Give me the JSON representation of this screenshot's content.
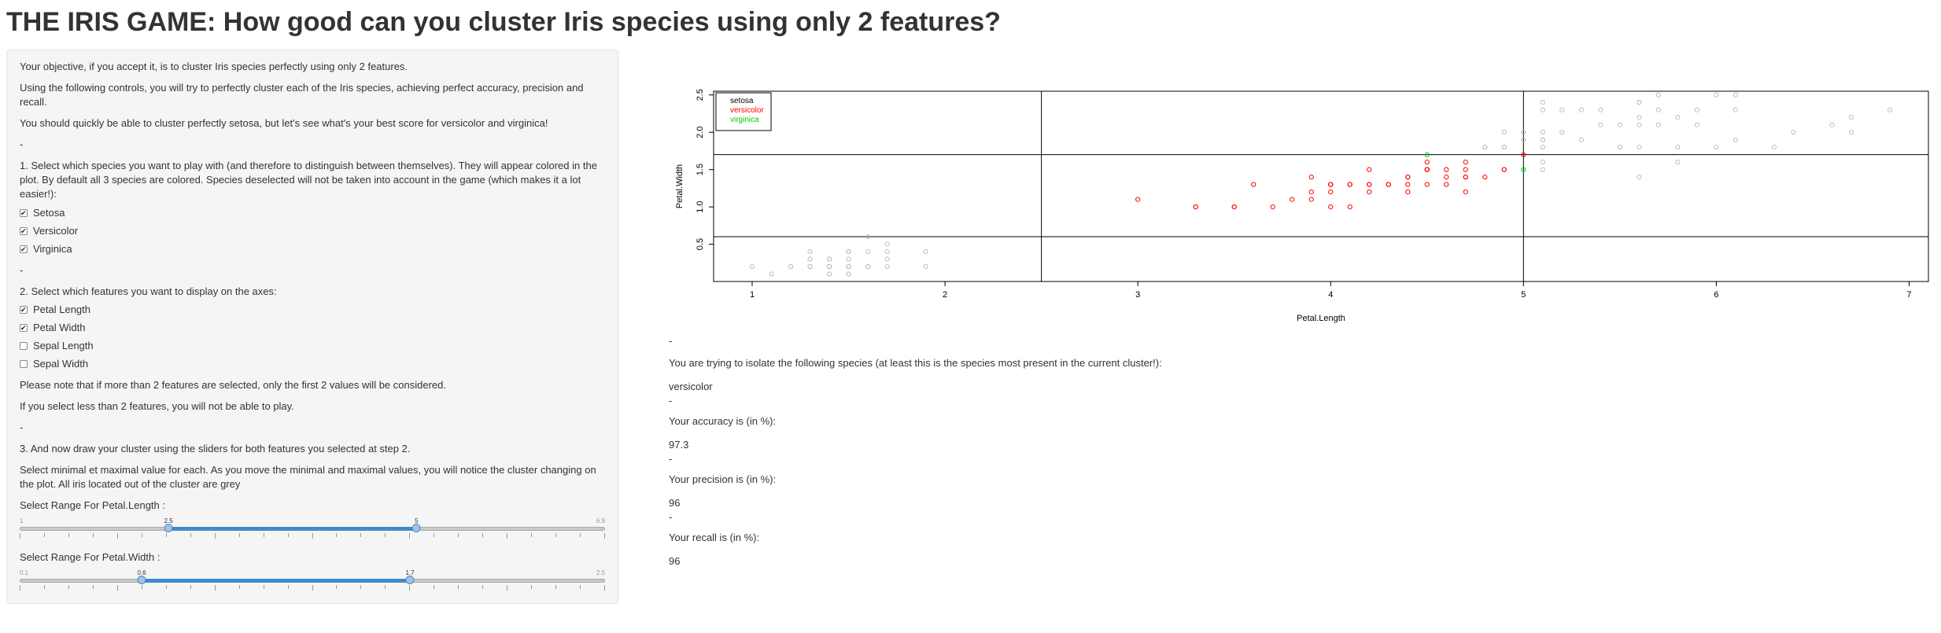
{
  "title": "THE IRIS GAME: How good can you cluster Iris species using only 2 features?",
  "sidebar": {
    "intro1": "Your objective, if you accept it, is to cluster Iris species perfectly using only 2 features.",
    "intro2": "Using the following controls, you will try to perfectly cluster each of the Iris species, achieving perfect accuracy, precision and recall.",
    "intro3": "You should quickly be able to cluster perfectly setosa, but let's see what's your best score for versicolor and virginica!",
    "dash": "-",
    "step1": "1. Select which species you want to play with (and therefore to distinguish between themselves). They will appear colored in the plot. By default all 3 species are colored. Species deselected will not be taken into account in the game (which makes it a lot easier!):",
    "species": [
      {
        "label": "Setosa",
        "checked": true
      },
      {
        "label": "Versicolor",
        "checked": true
      },
      {
        "label": "Virginica",
        "checked": true
      }
    ],
    "step2": "2. Select which features you want to display on the axes:",
    "features": [
      {
        "label": "Petal Length",
        "checked": true
      },
      {
        "label": "Petal Width",
        "checked": true
      },
      {
        "label": "Sepal Length",
        "checked": false
      },
      {
        "label": "Sepal Width",
        "checked": false
      }
    ],
    "note1": "Please note that if more than 2 features are selected, only the first 2 values will be considered.",
    "note2": "If you select less than 2 features, you will not be able to play.",
    "step3": "3. And now draw your cluster using the sliders for both features you selected at step 2.",
    "step3_detail": "Select minimal et maximal value for each. As you move the minimal and maximal values, you will notice the cluster changing on the plot. All iris located out of the cluster are grey",
    "slider1": {
      "label": "Select Range For Petal.Length :",
      "min": 1,
      "max": 6.9,
      "from": 2.5,
      "to": 5,
      "min_label": "1",
      "max_label": "6.9",
      "from_label": "2.5",
      "to_label": "5"
    },
    "slider2": {
      "label": "Select Range For Petal.Width :",
      "min": 0.1,
      "max": 2.5,
      "from": 0.6,
      "to": 1.7,
      "min_label": "0.1",
      "max_label": "2.5",
      "from_label": "0.6",
      "to_label": "1.7"
    }
  },
  "results": {
    "dash": "-",
    "species_label": "You are trying to isolate the following species (at least this is the species most present in the current cluster!):",
    "species_value": "versicolor",
    "accuracy_label": "Your accuracy is (in %):",
    "accuracy_value": "97.3",
    "precision_label": "Your precision is (in %):",
    "precision_value": "96",
    "recall_label": "Your recall is (in %):",
    "recall_value": "96"
  },
  "chart_data": {
    "type": "scatter",
    "xlabel": "Petal.Length",
    "ylabel": "Petal.Width",
    "xlim": [
      0.8,
      7.1
    ],
    "ylim": [
      0.0,
      2.55
    ],
    "xticks": [
      "1",
      "2",
      "3",
      "4",
      "5",
      "6",
      "7"
    ],
    "yticks": [
      "0.5",
      "1.0",
      "1.5",
      "2.0",
      "2.5"
    ],
    "legend": {
      "position": "top-left",
      "entries": [
        {
          "name": "setosa",
          "color": "#000000"
        },
        {
          "name": "versicolor",
          "color": "#ff0000"
        },
        {
          "name": "virginica",
          "color": "#00cd00"
        }
      ]
    },
    "cluster_lines": {
      "x": [
        2.5,
        5
      ],
      "y": [
        0.6,
        1.7
      ]
    },
    "colors": {
      "in_cluster_versicolor": "#ff0000",
      "in_cluster_virginica": "#00cd00",
      "out_of_cluster": "#bebebe"
    },
    "series": [
      {
        "name": "setosa",
        "points": [
          [
            1.4,
            0.2
          ],
          [
            1.4,
            0.2
          ],
          [
            1.3,
            0.2
          ],
          [
            1.5,
            0.2
          ],
          [
            1.4,
            0.2
          ],
          [
            1.7,
            0.4
          ],
          [
            1.4,
            0.3
          ],
          [
            1.5,
            0.2
          ],
          [
            1.4,
            0.2
          ],
          [
            1.5,
            0.1
          ],
          [
            1.5,
            0.2
          ],
          [
            1.6,
            0.2
          ],
          [
            1.4,
            0.1
          ],
          [
            1.1,
            0.1
          ],
          [
            1.2,
            0.2
          ],
          [
            1.5,
            0.4
          ],
          [
            1.3,
            0.4
          ],
          [
            1.4,
            0.3
          ],
          [
            1.7,
            0.3
          ],
          [
            1.5,
            0.3
          ],
          [
            1.7,
            0.2
          ],
          [
            1.5,
            0.4
          ],
          [
            1.0,
            0.2
          ],
          [
            1.7,
            0.5
          ],
          [
            1.9,
            0.2
          ],
          [
            1.6,
            0.2
          ],
          [
            1.6,
            0.4
          ],
          [
            1.5,
            0.2
          ],
          [
            1.4,
            0.2
          ],
          [
            1.6,
            0.2
          ],
          [
            1.6,
            0.2
          ],
          [
            1.5,
            0.4
          ],
          [
            1.5,
            0.1
          ],
          [
            1.4,
            0.2
          ],
          [
            1.5,
            0.2
          ],
          [
            1.2,
            0.2
          ],
          [
            1.3,
            0.2
          ],
          [
            1.4,
            0.1
          ],
          [
            1.3,
            0.2
          ],
          [
            1.5,
            0.2
          ],
          [
            1.3,
            0.3
          ],
          [
            1.3,
            0.3
          ],
          [
            1.3,
            0.2
          ],
          [
            1.6,
            0.6
          ],
          [
            1.9,
            0.4
          ],
          [
            1.4,
            0.3
          ],
          [
            1.6,
            0.2
          ],
          [
            1.4,
            0.2
          ],
          [
            1.5,
            0.2
          ],
          [
            1.4,
            0.2
          ]
        ]
      },
      {
        "name": "versicolor",
        "points": [
          [
            4.7,
            1.4
          ],
          [
            4.5,
            1.5
          ],
          [
            4.9,
            1.5
          ],
          [
            4.0,
            1.3
          ],
          [
            4.6,
            1.5
          ],
          [
            4.5,
            1.3
          ],
          [
            4.7,
            1.6
          ],
          [
            3.3,
            1.0
          ],
          [
            4.6,
            1.3
          ],
          [
            3.9,
            1.4
          ],
          [
            3.5,
            1.0
          ],
          [
            4.2,
            1.5
          ],
          [
            4.0,
            1.0
          ],
          [
            4.7,
            1.4
          ],
          [
            3.6,
            1.3
          ],
          [
            4.4,
            1.4
          ],
          [
            4.5,
            1.5
          ],
          [
            4.1,
            1.0
          ],
          [
            4.5,
            1.5
          ],
          [
            3.9,
            1.1
          ],
          [
            4.8,
            1.8
          ],
          [
            4.0,
            1.3
          ],
          [
            4.9,
            1.5
          ],
          [
            4.7,
            1.2
          ],
          [
            4.3,
            1.3
          ],
          [
            4.4,
            1.4
          ],
          [
            4.8,
            1.4
          ],
          [
            5.0,
            1.7
          ],
          [
            4.5,
            1.5
          ],
          [
            3.5,
            1.0
          ],
          [
            3.8,
            1.1
          ],
          [
            3.7,
            1.0
          ],
          [
            3.9,
            1.2
          ],
          [
            5.1,
            1.6
          ],
          [
            4.5,
            1.5
          ],
          [
            4.5,
            1.6
          ],
          [
            4.7,
            1.5
          ],
          [
            4.4,
            1.3
          ],
          [
            4.1,
            1.3
          ],
          [
            4.0,
            1.3
          ],
          [
            4.4,
            1.2
          ],
          [
            4.6,
            1.4
          ],
          [
            4.0,
            1.2
          ],
          [
            3.3,
            1.0
          ],
          [
            4.2,
            1.3
          ],
          [
            4.2,
            1.2
          ],
          [
            4.2,
            1.3
          ],
          [
            4.3,
            1.3
          ],
          [
            3.0,
            1.1
          ],
          [
            4.1,
            1.3
          ]
        ]
      },
      {
        "name": "virginica",
        "points": [
          [
            6.0,
            2.5
          ],
          [
            5.1,
            1.9
          ],
          [
            5.9,
            2.1
          ],
          [
            5.6,
            1.8
          ],
          [
            5.8,
            2.2
          ],
          [
            6.6,
            2.1
          ],
          [
            4.5,
            1.7
          ],
          [
            6.3,
            1.8
          ],
          [
            5.8,
            1.8
          ],
          [
            6.1,
            2.5
          ],
          [
            5.1,
            2.0
          ],
          [
            5.3,
            1.9
          ],
          [
            5.5,
            2.1
          ],
          [
            5.0,
            2.0
          ],
          [
            5.1,
            2.4
          ],
          [
            5.3,
            2.3
          ],
          [
            5.5,
            1.8
          ],
          [
            6.7,
            2.2
          ],
          [
            6.9,
            2.3
          ],
          [
            5.0,
            1.5
          ],
          [
            5.7,
            2.3
          ],
          [
            4.9,
            2.0
          ],
          [
            6.7,
            2.0
          ],
          [
            4.9,
            1.8
          ],
          [
            5.7,
            2.1
          ],
          [
            6.0,
            1.8
          ],
          [
            4.8,
            1.8
          ],
          [
            4.9,
            1.8
          ],
          [
            5.6,
            2.1
          ],
          [
            5.8,
            1.6
          ],
          [
            6.1,
            1.9
          ],
          [
            6.4,
            2.0
          ],
          [
            5.6,
            2.2
          ],
          [
            5.1,
            1.5
          ],
          [
            5.6,
            1.4
          ],
          [
            6.1,
            2.3
          ],
          [
            5.6,
            2.4
          ],
          [
            5.5,
            1.8
          ],
          [
            4.8,
            1.8
          ],
          [
            5.4,
            2.1
          ],
          [
            5.6,
            2.4
          ],
          [
            5.1,
            2.3
          ],
          [
            5.1,
            1.9
          ],
          [
            5.9,
            2.3
          ],
          [
            5.7,
            2.5
          ],
          [
            5.2,
            2.3
          ],
          [
            5.0,
            1.9
          ],
          [
            5.2,
            2.0
          ],
          [
            5.4,
            2.3
          ],
          [
            5.1,
            1.8
          ]
        ]
      }
    ]
  }
}
